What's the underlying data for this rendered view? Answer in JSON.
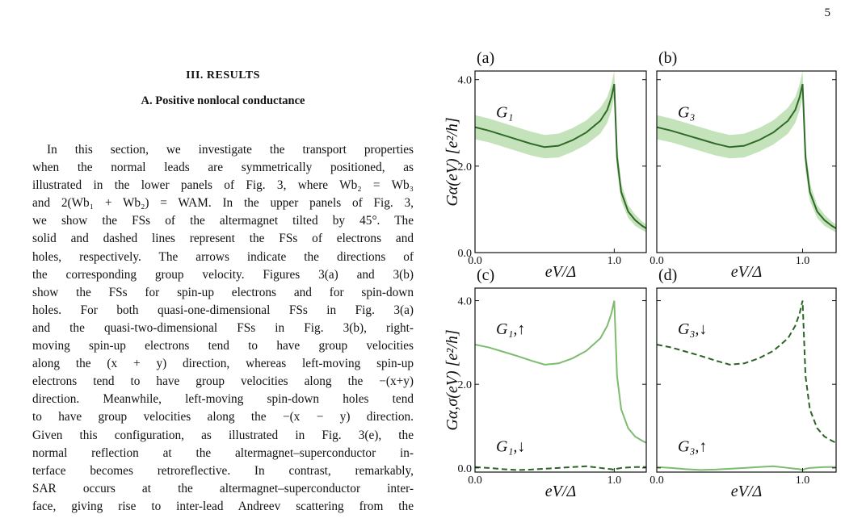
{
  "page_number": "5",
  "heading": "III.   RESULTS",
  "subheading": "A.   Positive nonlocal conductance",
  "paragraph": [
    "In this section, we investigate the transport properties",
    "when the normal leads are symmetrically positioned, as",
    "illustrated in the lower panels of Fig. 3, where Wb₂ = Wb₃",
    "and 2(Wb₁ + Wb₂) = WAM. In the upper panels of Fig. 3,",
    "we show the FSs of the altermagnet tilted by 45°. The",
    "solid and dashed lines represent the FSs of electrons and",
    "holes, respectively. The arrows indicate the directions of",
    "the corresponding group velocity. Figures 3(a) and 3(b)",
    "show the FSs for spin-up electrons and for spin-down",
    "holes. For both quasi-one-dimensional FSs in Fig. 3(a)",
    "and the quasi-two-dimensional FSs in Fig. 3(b), right-",
    "moving spin-up electrons tend to have group velocities",
    "along the (x + y) direction, whereas left-moving spin-up",
    "electrons tend to have group velocities along the −(x+y)",
    "direction. Meanwhile, left-moving spin-down holes tend",
    "to have group velocities along the −(x − y) direction.",
    "Given this configuration, as illustrated in Fig. 3(e), the",
    "normal reflection at the altermagnet–superconductor in-",
    "terface becomes retroreflective. In contrast, remarkably,",
    "SAR occurs at the altermagnet–superconductor inter-",
    "face, giving rise to inter-lead Andreev scattering from the"
  ],
  "chart_data": [
    {
      "type": "line",
      "panel_label": "(a)",
      "ylabel": "Gα(eV)  [e²/h]",
      "xlabel": "eV/Δ",
      "x": [
        0,
        0.1,
        0.2,
        0.3,
        0.4,
        0.5,
        0.6,
        0.7,
        0.8,
        0.9,
        0.95,
        0.98,
        1.0,
        1.02,
        1.05,
        1.1,
        1.15,
        1.2,
        1.23
      ],
      "xlim": [
        0,
        1.23
      ],
      "ylim": [
        0,
        4.2
      ],
      "xticks": [
        {
          "value": 0,
          "label": "0.0"
        },
        {
          "value": 1,
          "label": "1.0"
        }
      ],
      "yticks": [
        {
          "value": 0,
          "label": "0.0"
        },
        {
          "value": 2,
          "label": "2.0"
        },
        {
          "value": 4,
          "label": "4.0"
        }
      ],
      "ytick_labels": true,
      "series": [
        {
          "name": "G₁",
          "color": "#2f6a28",
          "dash": false,
          "band_color": "#c4e3bb",
          "values": [
            2.9,
            2.82,
            2.72,
            2.62,
            2.52,
            2.44,
            2.47,
            2.6,
            2.78,
            3.05,
            3.3,
            3.6,
            3.9,
            2.2,
            1.4,
            0.95,
            0.75,
            0.62,
            0.56
          ],
          "band_low": [
            2.62,
            2.55,
            2.45,
            2.35,
            2.25,
            2.18,
            2.2,
            2.33,
            2.5,
            2.75,
            3.0,
            3.3,
            3.6,
            1.9,
            1.2,
            0.8,
            0.62,
            0.52,
            0.47
          ],
          "band_high": [
            3.18,
            3.1,
            3.0,
            2.9,
            2.8,
            2.72,
            2.75,
            2.88,
            3.06,
            3.35,
            3.6,
            3.9,
            4.2,
            2.5,
            1.6,
            1.1,
            0.88,
            0.72,
            0.65
          ]
        }
      ]
    },
    {
      "type": "line",
      "panel_label": "(b)",
      "xlabel": "eV/Δ",
      "x": [
        0,
        0.1,
        0.2,
        0.3,
        0.4,
        0.5,
        0.6,
        0.7,
        0.8,
        0.9,
        0.95,
        0.98,
        1.0,
        1.02,
        1.05,
        1.1,
        1.15,
        1.2,
        1.23
      ],
      "xlim": [
        0,
        1.23
      ],
      "ylim": [
        0,
        4.2
      ],
      "xticks": [
        {
          "value": 0,
          "label": "0.0"
        },
        {
          "value": 1,
          "label": "1.0"
        }
      ],
      "yticks": [
        {
          "value": 0,
          "label": "0.0"
        },
        {
          "value": 2,
          "label": "2.0"
        },
        {
          "value": 4,
          "label": "4.0"
        }
      ],
      "ytick_labels": false,
      "series": [
        {
          "name": "G₃",
          "color": "#2f6a28",
          "dash": false,
          "band_color": "#c4e3bb",
          "values": [
            2.9,
            2.82,
            2.72,
            2.62,
            2.52,
            2.44,
            2.47,
            2.6,
            2.78,
            3.05,
            3.3,
            3.6,
            3.9,
            2.2,
            1.4,
            0.95,
            0.75,
            0.62,
            0.56
          ],
          "band_low": [
            2.62,
            2.55,
            2.45,
            2.35,
            2.25,
            2.18,
            2.2,
            2.33,
            2.5,
            2.75,
            3.0,
            3.3,
            3.6,
            1.9,
            1.2,
            0.8,
            0.62,
            0.52,
            0.47
          ],
          "band_high": [
            3.18,
            3.1,
            3.0,
            2.9,
            2.8,
            2.72,
            2.75,
            2.88,
            3.06,
            3.35,
            3.6,
            3.9,
            4.2,
            2.5,
            1.6,
            1.1,
            0.88,
            0.72,
            0.65
          ]
        }
      ]
    },
    {
      "type": "line",
      "panel_label": "(c)",
      "ylabel": "Gα,σ(eV)  [e²/h]",
      "xlabel": "eV/Δ",
      "x": [
        0,
        0.1,
        0.2,
        0.3,
        0.4,
        0.5,
        0.6,
        0.7,
        0.8,
        0.9,
        0.95,
        0.98,
        1.0,
        1.02,
        1.05,
        1.1,
        1.15,
        1.2,
        1.23
      ],
      "xlim": [
        0,
        1.23
      ],
      "ylim": [
        -0.1,
        4.3
      ],
      "xticks": [
        {
          "value": 0,
          "label": "0.0"
        },
        {
          "value": 1,
          "label": "1.0"
        }
      ],
      "yticks": [
        {
          "value": 0,
          "label": "0.0"
        },
        {
          "value": 2,
          "label": "2.0"
        },
        {
          "value": 4,
          "label": "4.0"
        }
      ],
      "ytick_labels": true,
      "series": [
        {
          "name": "G₁,↑",
          "color": "#7dbb70",
          "dash": false,
          "values": [
            2.95,
            2.88,
            2.78,
            2.68,
            2.57,
            2.47,
            2.5,
            2.62,
            2.8,
            3.1,
            3.4,
            3.7,
            4.0,
            2.2,
            1.4,
            0.95,
            0.75,
            0.65,
            0.6
          ]
        },
        {
          "name": "G₁,↓",
          "color": "#2a6424",
          "dash": true,
          "values": [
            0.02,
            0.0,
            -0.03,
            -0.05,
            -0.04,
            -0.02,
            0.0,
            0.02,
            0.04,
            0.0,
            -0.02,
            -0.03,
            -0.05,
            -0.02,
            0.0,
            0.01,
            0.02,
            0.02,
            0.02
          ]
        }
      ]
    },
    {
      "type": "line",
      "panel_label": "(d)",
      "xlabel": "eV/Δ",
      "x": [
        0,
        0.1,
        0.2,
        0.3,
        0.4,
        0.5,
        0.6,
        0.7,
        0.8,
        0.9,
        0.95,
        0.98,
        1.0,
        1.02,
        1.05,
        1.1,
        1.15,
        1.2,
        1.23
      ],
      "xlim": [
        0,
        1.23
      ],
      "ylim": [
        -0.1,
        4.3
      ],
      "xticks": [
        {
          "value": 0,
          "label": "0.0"
        },
        {
          "value": 1,
          "label": "1.0"
        }
      ],
      "yticks": [
        {
          "value": 0,
          "label": "0.0"
        },
        {
          "value": 2,
          "label": "2.0"
        },
        {
          "value": 4,
          "label": "4.0"
        }
      ],
      "ytick_labels": false,
      "series": [
        {
          "name": "G₃,↓",
          "color": "#2a6424",
          "dash": true,
          "values": [
            2.95,
            2.88,
            2.78,
            2.68,
            2.57,
            2.47,
            2.5,
            2.62,
            2.8,
            3.1,
            3.4,
            3.7,
            4.0,
            2.2,
            1.4,
            0.95,
            0.75,
            0.65,
            0.6
          ]
        },
        {
          "name": "G₃,↑",
          "color": "#7dbb70",
          "dash": false,
          "values": [
            0.02,
            0.0,
            -0.03,
            -0.05,
            -0.04,
            -0.02,
            0.0,
            0.02,
            0.04,
            0.0,
            -0.02,
            -0.03,
            -0.05,
            -0.02,
            0.0,
            0.01,
            0.02,
            0.02,
            0.02
          ]
        }
      ]
    }
  ]
}
